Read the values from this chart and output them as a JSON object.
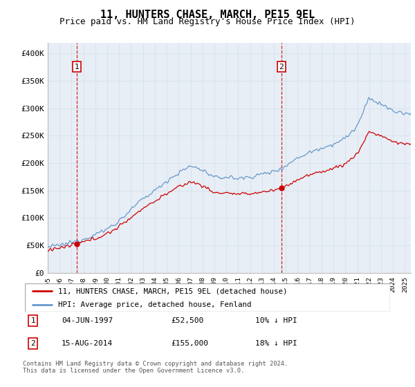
{
  "title": "11, HUNTERS CHASE, MARCH, PE15 9EL",
  "subtitle": "Price paid vs. HM Land Registry's House Price Index (HPI)",
  "xlim_start": 1995.0,
  "xlim_end": 2025.5,
  "ylim": [
    0,
    420000
  ],
  "yticks": [
    0,
    50000,
    100000,
    150000,
    200000,
    250000,
    300000,
    350000,
    400000
  ],
  "ytick_labels": [
    "£0",
    "£50K",
    "£100K",
    "£150K",
    "£200K",
    "£250K",
    "£300K",
    "£350K",
    "£400K"
  ],
  "sale1_x": 1997.42,
  "sale1_y": 52500,
  "sale1_label": "1",
  "sale2_x": 2014.62,
  "sale2_y": 155000,
  "sale2_label": "2",
  "hpi_color": "#6699cc",
  "price_color": "#cc0000",
  "vline_color": "#cc0000",
  "grid_color": "#d8e4f0",
  "plot_bg": "#e8eef5",
  "legend_label_price": "11, HUNTERS CHASE, MARCH, PE15 9EL (detached house)",
  "legend_label_hpi": "HPI: Average price, detached house, Fenland",
  "footnote": "Contains HM Land Registry data © Crown copyright and database right 2024.\nThis data is licensed under the Open Government Licence v3.0.",
  "title_fontsize": 11,
  "subtitle_fontsize": 9,
  "tick_fontsize": 8
}
